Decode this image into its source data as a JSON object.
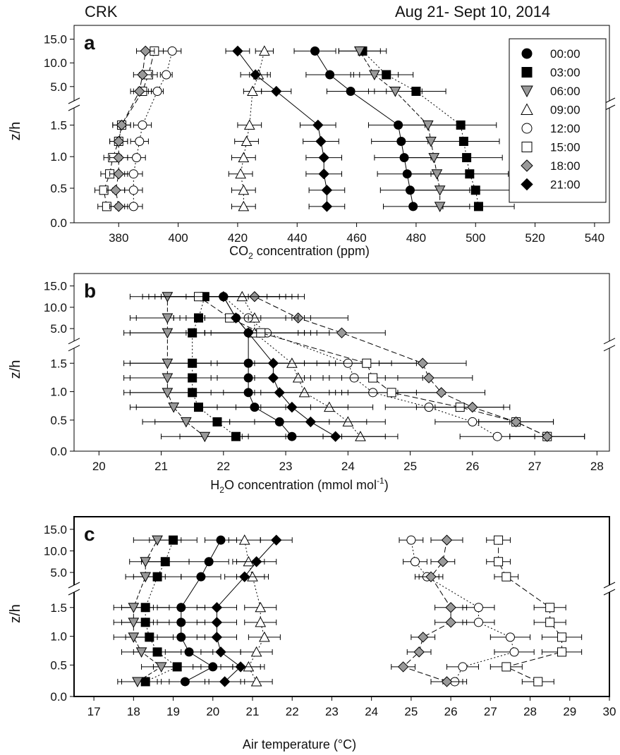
{
  "header": {
    "site": "CRK",
    "period": "Aug 21- Sept 10, 2014"
  },
  "legend": [
    {
      "label": "00:00",
      "marker": "circle",
      "fill": "#000000"
    },
    {
      "label": "03:00",
      "marker": "square",
      "fill": "#000000"
    },
    {
      "label": "06:00",
      "marker": "triangle-down",
      "fill": "#999999"
    },
    {
      "label": "09:00",
      "marker": "triangle-up",
      "fill": "#ffffff"
    },
    {
      "label": "12:00",
      "marker": "circle",
      "fill": "#ffffff"
    },
    {
      "label": "15:00",
      "marker": "square",
      "fill": "#ffffff"
    },
    {
      "label": "18:00",
      "marker": "diamond",
      "fill": "#999999"
    },
    {
      "label": "21:00",
      "marker": "diamond",
      "fill": "#000000"
    }
  ],
  "chart_data": [
    {
      "type": "scatter",
      "panel": "a",
      "xlabel_main": "CO",
      "xlabel_sub": "2",
      "xlabel_rest": " concentration (ppm)",
      "ylabel": "z/h",
      "xlim": [
        365,
        545
      ],
      "xticks": [
        380,
        400,
        420,
        440,
        460,
        480,
        500,
        520,
        540
      ],
      "ytick_labels": [
        "15.0",
        "10.0",
        "5.0",
        "1.5",
        "1.0",
        "0.5",
        "0.0"
      ],
      "y_levels": [
        0.25,
        0.5,
        0.75,
        1.0,
        1.25,
        1.5,
        4,
        7.5,
        12.5
      ],
      "series": [
        {
          "name": "00:00",
          "x": [
            479,
            478,
            477,
            476,
            475,
            474,
            458,
            451,
            446
          ],
          "err": [
            10,
            10,
            10,
            10,
            10,
            10,
            8,
            8,
            7
          ]
        },
        {
          "name": "03:00",
          "x": [
            501,
            500,
            498,
            497,
            496,
            495,
            480,
            470,
            462
          ],
          "err": [
            12,
            12,
            13,
            12,
            12,
            12,
            10,
            9,
            8
          ]
        },
        {
          "name": "06:00",
          "x": [
            488,
            488,
            487,
            486,
            485,
            484,
            473,
            466,
            461
          ],
          "err": [
            10,
            10,
            10,
            10,
            10,
            10,
            9,
            8,
            7
          ]
        },
        {
          "name": "09:00",
          "x": [
            422,
            422,
            421,
            422,
            423,
            424,
            425,
            427,
            429
          ],
          "err": [
            4,
            4,
            4,
            4,
            4,
            4,
            3,
            3,
            3
          ]
        },
        {
          "name": "12:00",
          "x": [
            385,
            385,
            385,
            386,
            387,
            388,
            393,
            396,
            398
          ],
          "err": [
            3,
            3,
            3,
            3,
            3,
            3,
            2,
            2,
            3
          ]
        },
        {
          "name": "15:00",
          "x": [
            376,
            375,
            377,
            378,
            380,
            381,
            388,
            390,
            392
          ],
          "err": [
            3,
            3,
            3,
            3,
            3,
            3,
            3,
            3,
            3
          ]
        },
        {
          "name": "18:00",
          "x": [
            380,
            379,
            380,
            380,
            380,
            381,
            387,
            388,
            389
          ],
          "err": [
            3,
            3,
            3,
            3,
            3,
            3,
            3,
            3,
            3
          ]
        },
        {
          "name": "21:00",
          "x": [
            450,
            450,
            449,
            449,
            448,
            447,
            433,
            426,
            420
          ],
          "err": [
            6,
            6,
            6,
            6,
            6,
            6,
            5,
            5,
            4
          ]
        }
      ]
    },
    {
      "type": "scatter",
      "panel": "b",
      "xlabel_main": "H",
      "xlabel_sub": "2",
      "xlabel_rest": "O concentration (mmol mol",
      "xlabel_sup": "-1",
      "xlabel_end": ")",
      "ylabel": "z/h",
      "xlim": [
        19.6,
        28.2
      ],
      "xticks": [
        20,
        21,
        22,
        23,
        24,
        25,
        26,
        27,
        28
      ],
      "ytick_labels": [
        "15.0",
        "10.0",
        "5.0",
        "1.5",
        "1.0",
        "0.5",
        "0.0"
      ],
      "y_levels": [
        0.25,
        0.5,
        0.75,
        1.0,
        1.25,
        1.5,
        4,
        7.5,
        12.5
      ],
      "series": [
        {
          "name": "00:00",
          "x": [
            23.1,
            22.9,
            22.5,
            22.4,
            22.4,
            22.4,
            22.4,
            22.2,
            22.0
          ],
          "err": [
            0.8,
            0.8,
            0.9,
            0.9,
            0.9,
            0.9,
            0.9,
            0.9,
            0.9
          ]
        },
        {
          "name": "03:00",
          "x": [
            22.2,
            21.9,
            21.6,
            21.5,
            21.5,
            21.5,
            21.5,
            21.6,
            21.7
          ],
          "err": [
            0.9,
            1.0,
            1.0,
            1.0,
            1.0,
            1.0,
            1.0,
            1.0,
            1.0
          ]
        },
        {
          "name": "06:00",
          "x": [
            21.7,
            21.4,
            21.2,
            21.1,
            21.1,
            21.1,
            21.1,
            21.1,
            21.1
          ],
          "err": [
            0.7,
            0.7,
            0.7,
            0.7,
            0.7,
            0.7,
            0.7,
            0.6,
            0.6
          ]
        },
        {
          "name": "09:00",
          "x": [
            24.2,
            24.0,
            23.7,
            23.3,
            23.2,
            23.1,
            22.5,
            22.5,
            22.3
          ],
          "err": [
            0.6,
            0.6,
            0.7,
            0.7,
            0.7,
            0.7,
            0.8,
            0.8,
            0.9
          ]
        },
        {
          "name": "12:00",
          "x": [
            26.4,
            26.0,
            25.3,
            24.4,
            24.1,
            24.0,
            22.7,
            22.4,
            22.0
          ],
          "err": [
            0.6,
            0.6,
            0.7,
            0.7,
            0.7,
            0.7,
            1.0,
            1.0,
            1.1
          ]
        },
        {
          "name": "15:00",
          "x": [
            27.2,
            26.7,
            25.8,
            24.7,
            24.4,
            24.3,
            22.6,
            22.1,
            21.6
          ],
          "err": [
            0.6,
            0.6,
            0.7,
            0.8,
            0.8,
            0.8,
            0.9,
            0.9,
            0.8
          ]
        },
        {
          "name": "18:00",
          "x": [
            27.2,
            26.7,
            26.0,
            25.5,
            25.3,
            25.2,
            23.9,
            23.2,
            22.5
          ],
          "err": [
            0.6,
            0.6,
            0.6,
            0.7,
            0.7,
            0.7,
            0.7,
            0.8,
            0.8
          ]
        },
        {
          "name": "21:00",
          "x": [
            23.8,
            23.4,
            23.1,
            22.9,
            22.8,
            22.8,
            22.4,
            22.2,
            22.0
          ],
          "err": [
            0.8,
            0.9,
            0.9,
            0.9,
            0.9,
            0.9,
            1.0,
            1.0,
            1.0
          ]
        }
      ]
    },
    {
      "type": "scatter",
      "panel": "c",
      "xlabel_main": "Air temperature (°C)",
      "ylabel": "z/h",
      "xlim": [
        16.5,
        30
      ],
      "xticks": [
        17,
        18,
        19,
        20,
        21,
        22,
        23,
        24,
        25,
        26,
        27,
        28,
        29,
        30
      ],
      "ytick_labels": [
        "15.0",
        "10.0",
        "5.0",
        "1.5",
        "1.0",
        "0.5",
        "0.0"
      ],
      "y_levels": [
        0.25,
        0.5,
        0.75,
        1.0,
        1.25,
        1.5,
        4,
        7.5,
        12.5
      ],
      "series": [
        {
          "name": "00:00",
          "x": [
            19.3,
            20.0,
            19.4,
            19.2,
            19.2,
            19.2,
            19.7,
            19.9,
            20.2
          ],
          "err": [
            0.6,
            0.5,
            0.6,
            0.6,
            0.6,
            0.6,
            0.5,
            0.5,
            0.4
          ]
        },
        {
          "name": "03:00",
          "x": [
            18.3,
            19.1,
            18.6,
            18.4,
            18.3,
            18.3,
            18.6,
            18.8,
            19.0
          ],
          "err": [
            0.6,
            0.6,
            0.6,
            0.6,
            0.6,
            0.6,
            0.6,
            0.6,
            0.6
          ]
        },
        {
          "name": "06:00",
          "x": [
            18.1,
            18.7,
            18.2,
            18.0,
            18.0,
            18.0,
            18.3,
            18.3,
            18.6
          ],
          "err": [
            0.5,
            0.5,
            0.5,
            0.5,
            0.5,
            0.5,
            0.5,
            0.4,
            0.6
          ]
        },
        {
          "name": "09:00",
          "x": [
            21.1,
            20.9,
            21.1,
            21.3,
            21.2,
            21.2,
            21.0,
            20.9,
            20.8
          ],
          "err": [
            0.4,
            0.4,
            0.4,
            0.4,
            0.4,
            0.4,
            0.4,
            0.4,
            0.4
          ]
        },
        {
          "name": "12:00",
          "x": [
            26.1,
            26.3,
            27.6,
            27.5,
            26.7,
            26.7,
            25.4,
            25.1,
            25.0
          ],
          "err": [
            0.3,
            0.4,
            0.5,
            0.5,
            0.4,
            0.4,
            0.3,
            0.3,
            0.3
          ]
        },
        {
          "name": "15:00",
          "x": [
            28.2,
            27.4,
            28.8,
            28.8,
            28.5,
            28.5,
            27.4,
            27.2,
            27.2
          ],
          "err": [
            0.4,
            0.4,
            0.5,
            0.5,
            0.4,
            0.4,
            0.3,
            0.3,
            0.3
          ]
        },
        {
          "name": "18:00",
          "x": [
            25.9,
            24.8,
            25.2,
            25.3,
            26.0,
            26.0,
            25.5,
            25.8,
            25.9
          ],
          "err": [
            0.4,
            0.3,
            0.3,
            0.3,
            0.4,
            0.4,
            0.3,
            0.3,
            0.4
          ]
        },
        {
          "name": "21:00",
          "x": [
            20.3,
            20.7,
            20.2,
            20.1,
            20.1,
            20.1,
            20.8,
            21.1,
            21.6
          ],
          "err": [
            0.5,
            0.5,
            0.5,
            0.5,
            0.5,
            0.5,
            0.5,
            0.5,
            0.4
          ]
        }
      ]
    }
  ]
}
